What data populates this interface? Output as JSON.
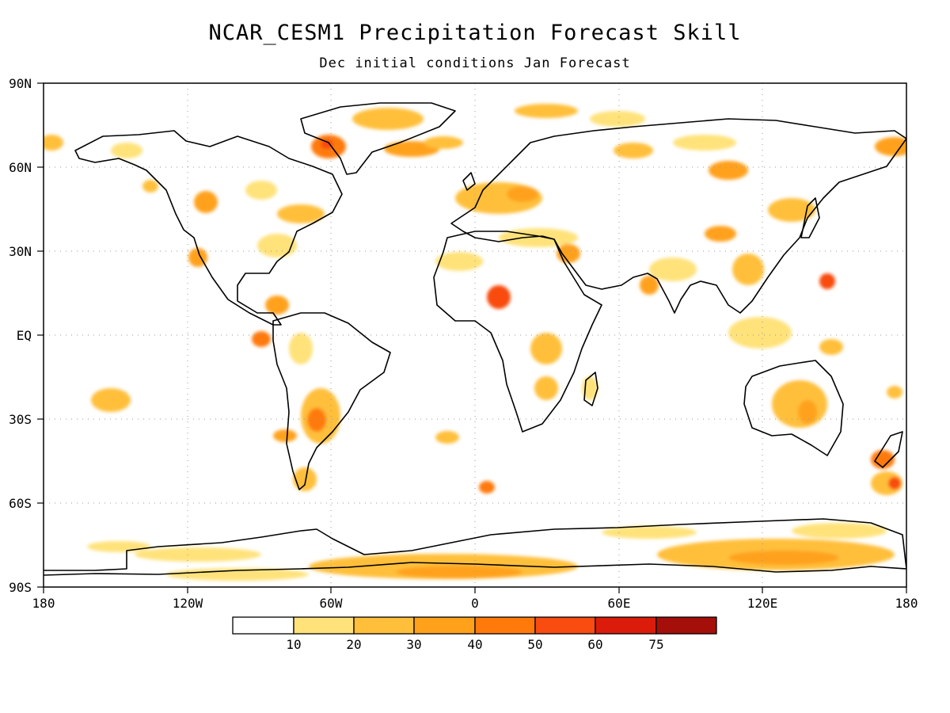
{
  "title": "NCAR_CESM1 Precipitation Forecast Skill",
  "subtitle": "Dec initial conditions  Jan Forecast",
  "axes": {
    "lat_labels": [
      "90N",
      "60N",
      "30N",
      "EQ",
      "30S",
      "60S",
      "90S"
    ],
    "lon_labels": [
      "180",
      "120W",
      "60W",
      "0",
      "60E",
      "120E",
      "180"
    ]
  },
  "colorbar": {
    "labels": [
      "10",
      "20",
      "30",
      "40",
      "50",
      "60",
      "75"
    ],
    "colors": [
      "#ffffff",
      "#ffe27a",
      "#ffbf3a",
      "#ffa11a",
      "#ff7a0a",
      "#f84c10",
      "#dc1c0a",
      "#a50f0a"
    ]
  },
  "colors": {
    "land_outline": "#000000",
    "grid": "#9a9a9a",
    "frame": "#000000"
  }
}
